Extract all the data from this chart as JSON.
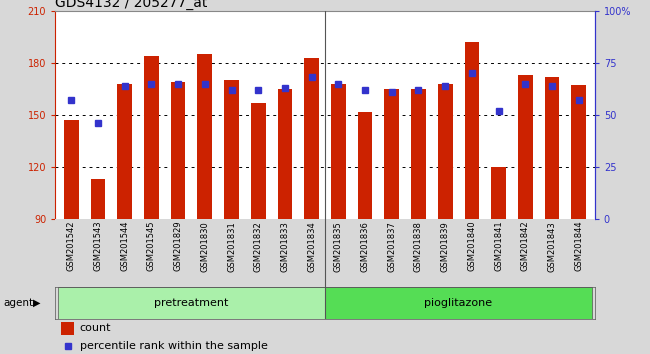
{
  "title": "GDS4132 / 205277_at",
  "categories": [
    "GSM201542",
    "GSM201543",
    "GSM201544",
    "GSM201545",
    "GSM201829",
    "GSM201830",
    "GSM201831",
    "GSM201832",
    "GSM201833",
    "GSM201834",
    "GSM201835",
    "GSM201836",
    "GSM201837",
    "GSM201838",
    "GSM201839",
    "GSM201840",
    "GSM201841",
    "GSM201842",
    "GSM201843",
    "GSM201844"
  ],
  "bar_values": [
    147,
    113,
    168,
    184,
    169,
    185,
    170,
    157,
    165,
    183,
    168,
    152,
    165,
    165,
    168,
    192,
    120,
    173,
    172,
    167
  ],
  "percentile_values": [
    57,
    46,
    64,
    65,
    65,
    65,
    62,
    62,
    63,
    68,
    65,
    62,
    61,
    62,
    64,
    70,
    52,
    65,
    64,
    57
  ],
  "ylim_left": [
    90,
    210
  ],
  "ylim_right": [
    0,
    100
  ],
  "yticks_left": [
    90,
    120,
    150,
    180,
    210
  ],
  "yticks_right": [
    0,
    25,
    50,
    75,
    100
  ],
  "yticklabels_right": [
    "0",
    "25",
    "50",
    "75",
    "100%"
  ],
  "bar_color": "#cc2200",
  "dot_color": "#3333cc",
  "bg_color": "#d8d8d8",
  "plot_bg": "#ffffff",
  "pretreatment_color": "#aaf0aa",
  "pioglitazone_color": "#55dd55",
  "pretreatment_label": "pretreatment",
  "pioglitazone_label": "pioglitazone",
  "agent_label": "agent",
  "legend_count": "count",
  "legend_percentile": "percentile rank within the sample",
  "left_tick_color": "#cc2200",
  "right_tick_color": "#3333cc",
  "title_fontsize": 10,
  "tick_fontsize": 7,
  "label_fontsize": 8,
  "bar_width": 0.55,
  "n_pretreatment": 10,
  "n_pioglitazone": 10
}
